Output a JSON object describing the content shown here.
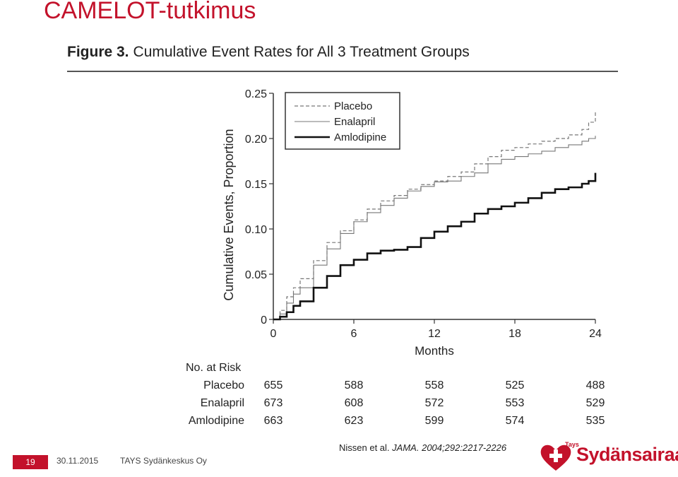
{
  "slide": {
    "title": "CAMELOT-tutkimus",
    "page_number": "19",
    "date": "30.11.2015",
    "organization": "TAYS Sydänkeskus Oy",
    "citation_authors": "Nissen et al.",
    "citation_journal": "JAMA.",
    "citation_ref": "2004;292:2217-2226",
    "logo_text": "Sydänsairaala",
    "logo_small": "Tays"
  },
  "figure": {
    "label": "Figure 3.",
    "title": "Cumulative Event Rates for All 3 Treatment Groups"
  },
  "chart_data": {
    "type": "line",
    "ylabel": "Cumulative Events, Proportion",
    "xlabel": "Months",
    "xlim": [
      0,
      24
    ],
    "ylim": [
      0,
      0.25
    ],
    "x_ticks": [
      0,
      6,
      12,
      18,
      24
    ],
    "y_ticks": [
      0,
      0.05,
      0.1,
      0.15,
      0.2,
      0.25
    ],
    "y_tick_labels": [
      "0",
      "0.05",
      "0.10",
      "0.15",
      "0.20",
      "0.25"
    ],
    "legend_position": "top-left",
    "series": [
      {
        "name": "Placebo",
        "style": "dashed",
        "color": "#777777",
        "x": [
          0,
          0.5,
          1,
          1.5,
          2,
          3,
          4,
          5,
          6,
          7,
          8,
          9,
          10,
          11,
          12,
          13,
          14,
          15,
          16,
          17,
          18,
          19,
          20,
          21,
          22,
          23,
          23.5,
          24
        ],
        "y": [
          0,
          0.01,
          0.025,
          0.035,
          0.045,
          0.065,
          0.085,
          0.098,
          0.11,
          0.122,
          0.131,
          0.137,
          0.144,
          0.149,
          0.153,
          0.158,
          0.163,
          0.172,
          0.18,
          0.187,
          0.19,
          0.194,
          0.197,
          0.2,
          0.204,
          0.21,
          0.218,
          0.23
        ]
      },
      {
        "name": "Enalapril",
        "style": "solid-thin",
        "color": "#777777",
        "x": [
          0,
          0.5,
          1,
          1.5,
          2,
          3,
          4,
          5,
          6,
          7,
          8,
          9,
          10,
          11,
          12,
          13,
          14,
          15,
          16,
          17,
          18,
          19,
          20,
          21,
          22,
          23,
          23.5,
          24
        ],
        "y": [
          0,
          0.006,
          0.018,
          0.028,
          0.035,
          0.06,
          0.078,
          0.095,
          0.108,
          0.118,
          0.126,
          0.134,
          0.142,
          0.147,
          0.152,
          0.153,
          0.158,
          0.162,
          0.172,
          0.177,
          0.18,
          0.183,
          0.186,
          0.19,
          0.193,
          0.197,
          0.2,
          0.203
        ]
      },
      {
        "name": "Amlodipine",
        "style": "solid-thick",
        "color": "#111111",
        "x": [
          0,
          0.5,
          1,
          1.5,
          2,
          3,
          4,
          5,
          6,
          7,
          8,
          9,
          10,
          11,
          12,
          13,
          14,
          15,
          16,
          17,
          18,
          19,
          20,
          21,
          22,
          23,
          23.5,
          24
        ],
        "y": [
          0,
          0.003,
          0.008,
          0.015,
          0.02,
          0.035,
          0.048,
          0.06,
          0.066,
          0.073,
          0.076,
          0.077,
          0.08,
          0.09,
          0.097,
          0.103,
          0.108,
          0.117,
          0.122,
          0.125,
          0.129,
          0.134,
          0.14,
          0.144,
          0.146,
          0.15,
          0.153,
          0.162
        ]
      }
    ],
    "number_at_risk": {
      "heading": "No. at Risk",
      "rows": [
        {
          "name": "Placebo",
          "values": [
            "655",
            "588",
            "558",
            "525",
            "488"
          ]
        },
        {
          "name": "Enalapril",
          "values": [
            "673",
            "608",
            "572",
            "553",
            "529"
          ]
        },
        {
          "name": "Amlodipine",
          "values": [
            "663",
            "623",
            "599",
            "574",
            "535"
          ]
        }
      ]
    }
  }
}
